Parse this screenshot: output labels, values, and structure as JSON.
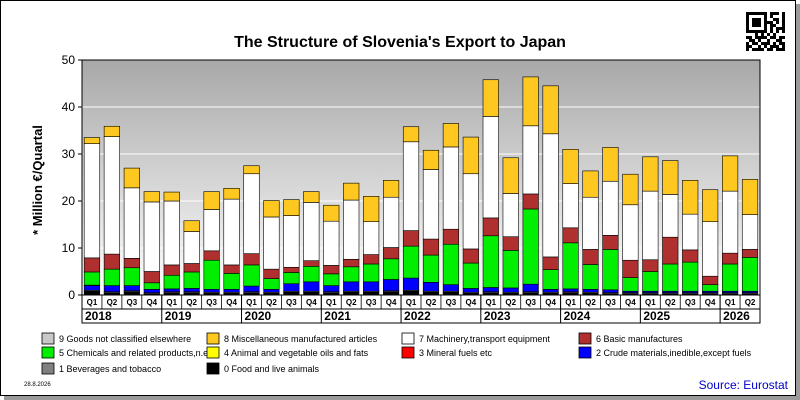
{
  "chart_data": {
    "type": "bar",
    "stacked": true,
    "title": "The Structure of Slovenia's Export to Japan",
    "ylabel": "* Million €/Quartal",
    "ylim": [
      0,
      50
    ],
    "yticks": [
      0,
      10,
      20,
      30,
      40,
      50
    ],
    "grid": true,
    "legend_position": "bottom",
    "categories": [
      "2018-Q1",
      "2018-Q2",
      "2018-Q3",
      "2018-Q4",
      "2019-Q1",
      "2019-Q2",
      "2019-Q3",
      "2019-Q4",
      "2020-Q1",
      "2020-Q2",
      "2020-Q3",
      "2020-Q4",
      "2021-Q1",
      "2021-Q2",
      "2021-Q3",
      "2021-Q4",
      "2022-Q1",
      "2022-Q2",
      "2022-Q3",
      "2022-Q4",
      "2023-Q1",
      "2023-Q2",
      "2023-Q3",
      "2023-Q4",
      "2024-Q1",
      "2024-Q2",
      "2024-Q3",
      "2024-Q4",
      "2025-Q1",
      "2025-Q2",
      "2025-Q3",
      "2025-Q4",
      "2026-Q1",
      "2026-Q2"
    ],
    "quarter_labels": [
      "Q1",
      "Q2",
      "Q3",
      "Q4",
      "Q1",
      "Q2",
      "Q3",
      "Q4",
      "Q1",
      "Q2",
      "Q3",
      "Q4",
      "Q1",
      "Q2",
      "Q3",
      "Q4",
      "Q1",
      "Q2",
      "Q3",
      "Q4",
      "Q1",
      "Q2",
      "Q3",
      "Q4",
      "Q1",
      "Q2",
      "Q3",
      "Q4",
      "Q1",
      "Q2",
      "Q3",
      "Q4",
      "Q1",
      "Q2"
    ],
    "years": [
      "2018",
      "2019",
      "2020",
      "2021",
      "2022",
      "2023",
      "2024",
      "2025",
      "2026"
    ],
    "series": [
      {
        "name": "0 Food and live animals",
        "color": "#000000",
        "values": [
          0.8,
          0.5,
          0.7,
          0.3,
          0.5,
          0.5,
          0.4,
          0.4,
          0.5,
          0.4,
          0.6,
          0.6,
          0.5,
          0.6,
          0.6,
          0.7,
          0.8,
          0.6,
          0.6,
          0.4,
          0.5,
          0.4,
          0.5,
          0.4,
          0.5,
          0.4,
          0.3,
          0.3,
          0.3,
          0.3,
          0.3,
          0.3,
          0.3,
          0.3
        ]
      },
      {
        "name": "1 Beverages and tobacco",
        "color": "#808080",
        "values": [
          0.2,
          0.2,
          0.2,
          0.2,
          0.2,
          0.2,
          0.2,
          0.2,
          0.2,
          0.2,
          0.2,
          0.2,
          0.2,
          0.2,
          0.2,
          0.2,
          0.2,
          0.2,
          0.2,
          0.2,
          0.2,
          0.2,
          0.2,
          0.2,
          0.2,
          0.2,
          0.2,
          0.2,
          0.2,
          0.2,
          0.2,
          0.2,
          0.2,
          0.2
        ]
      },
      {
        "name": "2 Crude materials,inedible,except fuels",
        "color": "#0000ff",
        "values": [
          1.0,
          1.3,
          1.1,
          0.7,
          0.6,
          0.7,
          0.6,
          0.6,
          1.2,
          0.6,
          1.6,
          2.0,
          1.3,
          2.0,
          2.0,
          2.4,
          2.6,
          1.9,
          1.4,
          0.8,
          0.9,
          0.9,
          1.6,
          0.6,
          0.6,
          0.6,
          0.6,
          0.3,
          0.3,
          0.3,
          0.3,
          0.3,
          0.3,
          0.3
        ]
      },
      {
        "name": "3 Mineral fuels etc",
        "color": "#ff0000",
        "values": [
          0.1,
          0,
          0,
          0,
          0,
          0,
          0,
          0,
          0,
          0,
          0,
          0,
          0,
          0,
          0,
          0,
          0,
          0,
          0,
          0,
          0,
          0,
          0,
          0,
          0,
          0,
          0,
          0,
          0,
          0,
          0,
          0,
          0,
          0
        ]
      },
      {
        "name": "4 Animal and vegetable oils and fats",
        "color": "#ffff00",
        "values": [
          0,
          0,
          0,
          0,
          0,
          0,
          0,
          0,
          0,
          0,
          0,
          0,
          0,
          0,
          0,
          0,
          0,
          0,
          0,
          0,
          0,
          0,
          0,
          0,
          0,
          0,
          0,
          0,
          0,
          0,
          0,
          0,
          0,
          0
        ]
      },
      {
        "name": "5 Chemicals and related products,n.e.s.",
        "color": "#00ee00",
        "values": [
          2.8,
          3.5,
          3.8,
          1.4,
          2.9,
          3.5,
          6.2,
          3.4,
          4.5,
          2.3,
          2.4,
          3.3,
          2.5,
          3.2,
          3.8,
          4.4,
          6.8,
          5.8,
          8.6,
          5.4,
          11.0,
          8.0,
          16.0,
          4.2,
          9.8,
          5.3,
          8.6,
          2.9,
          4.2,
          5.8,
          6.2,
          1.4,
          5.8,
          7.2
        ]
      },
      {
        "name": "6 Basic manufactures",
        "color": "#b03030",
        "values": [
          3.0,
          3.2,
          2.0,
          2.4,
          2.2,
          1.8,
          2.0,
          1.8,
          2.4,
          2.0,
          1.1,
          1.2,
          1.8,
          1.6,
          2.0,
          2.4,
          3.3,
          3.4,
          3.2,
          3.0,
          3.8,
          2.9,
          3.2,
          2.7,
          3.2,
          3.2,
          3.0,
          3.7,
          2.5,
          5.7,
          2.6,
          1.8,
          2.3,
          1.7
        ]
      },
      {
        "name": "7 Machinery,transport equipment",
        "color": "#ffffff",
        "values": [
          24.3,
          25.0,
          15.0,
          14.8,
          13.6,
          6.8,
          8.8,
          14.0,
          17.0,
          11.1,
          11.0,
          12.4,
          9.4,
          12.6,
          7.0,
          10.7,
          18.9,
          14.8,
          17.5,
          16.0,
          21.6,
          9.2,
          14.5,
          26.2,
          9.4,
          11.1,
          11.5,
          11.8,
          14.6,
          9.1,
          7.6,
          11.6,
          13.2,
          7.4
        ]
      },
      {
        "name": "8 Miscellaneous manufactured articles",
        "color": "#ffc820",
        "values": [
          1.3,
          2.2,
          4.2,
          2.2,
          1.9,
          2.3,
          3.8,
          2.3,
          1.7,
          3.5,
          3.4,
          2.3,
          3.4,
          3.6,
          5.4,
          3.6,
          3.2,
          4.1,
          5.0,
          7.8,
          7.8,
          7.6,
          10.4,
          10.2,
          7.3,
          5.6,
          7.2,
          6.5,
          7.3,
          7.2,
          7.2,
          6.8,
          7.5,
          7.5
        ]
      },
      {
        "name": "9 Goods not classified elsewhere",
        "color": "#c8c8c8",
        "values": [
          0,
          0,
          0,
          0,
          0,
          0,
          0,
          0,
          0,
          0,
          0,
          0,
          0,
          0,
          0,
          0,
          0,
          0,
          0,
          0,
          0,
          0,
          0,
          0,
          0,
          0,
          0,
          0,
          0,
          0,
          0,
          0,
          0,
          0
        ]
      }
    ],
    "legend_order": [
      9,
      8,
      7,
      6,
      5,
      4,
      3,
      2,
      1,
      0
    ]
  },
  "date_stamp": "28.8.2026",
  "source": "Source: Eurostat",
  "qr_icon": "qr-code-icon"
}
